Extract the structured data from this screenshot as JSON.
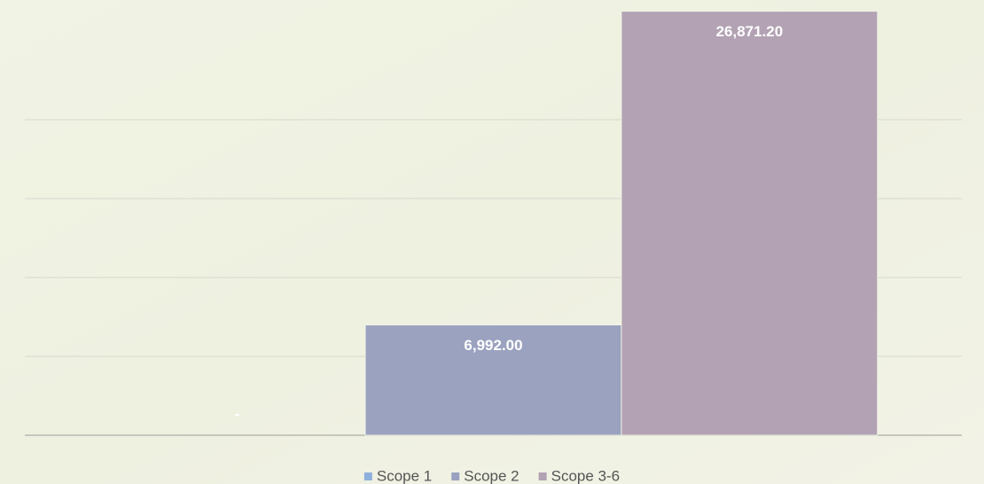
{
  "chart_data": {
    "type": "bar",
    "categories": [
      null
    ],
    "series": [
      {
        "name": "Scope 1",
        "color": "#8eb0dc",
        "values": [
          0
        ],
        "value_labels": [
          "-"
        ]
      },
      {
        "name": "Scope 2",
        "color": "#9aa2bf",
        "values": [
          6992.0
        ],
        "value_labels": [
          "6,992.00"
        ]
      },
      {
        "name": "Scope 3-6",
        "color": "#b2a2b3",
        "values": [
          26871.2
        ],
        "value_labels": [
          "26,871.20"
        ]
      }
    ],
    "ylim": [
      0,
      27000
    ],
    "yticks": [
      0,
      5000,
      10000,
      15000,
      20000
    ],
    "grid": true,
    "legend": "bottom"
  }
}
